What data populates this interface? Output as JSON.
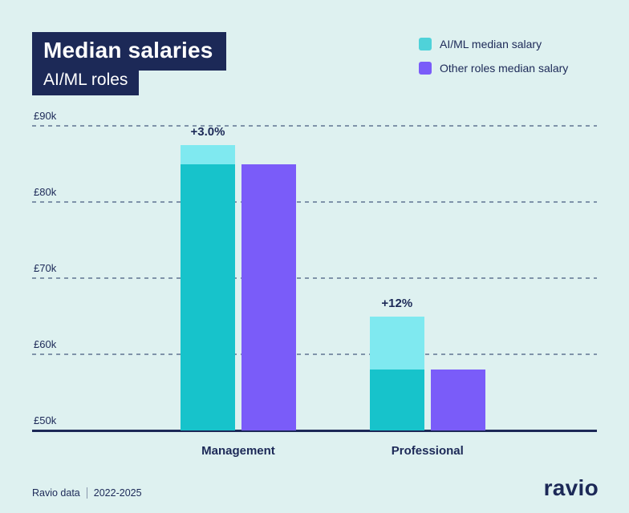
{
  "header": {
    "title": "Median salaries",
    "subtitle": "AI/ML roles"
  },
  "legend": [
    {
      "label": "AI/ML median salary",
      "color": "#4FD2D9"
    },
    {
      "label": "Other roles median salary",
      "color": "#7A5CF9"
    }
  ],
  "footer": {
    "source": "Ravio data",
    "period": "2022-2025",
    "brand": "ravio"
  },
  "colors": {
    "background": "#DEF1F0",
    "navy": "#1C2957",
    "aiml_bar": "#17C3CB",
    "aiml_growth_cap": "#7FE9F0",
    "other_bar": "#7A5CF9"
  },
  "chart_data": {
    "type": "bar",
    "title": "Median salaries — AI/ML roles",
    "categories": [
      "Management",
      "Professional"
    ],
    "series": [
      {
        "name": "AI/ML median salary",
        "values": [
          87.5,
          65
        ],
        "base_values": [
          85,
          58
        ],
        "growth_labels": [
          "+3.0%",
          "+12%"
        ]
      },
      {
        "name": "Other roles median salary",
        "values": [
          85,
          58
        ]
      }
    ],
    "unit": "£k (thousands GBP)",
    "y_ticks": [
      "£50k",
      "£60k",
      "£70k",
      "£80k",
      "£90k"
    ],
    "y_tick_values": [
      50,
      60,
      70,
      80,
      90
    ],
    "ylim": [
      50,
      92
    ],
    "grid": "dashed horizontal",
    "legend_position": "top-right"
  }
}
